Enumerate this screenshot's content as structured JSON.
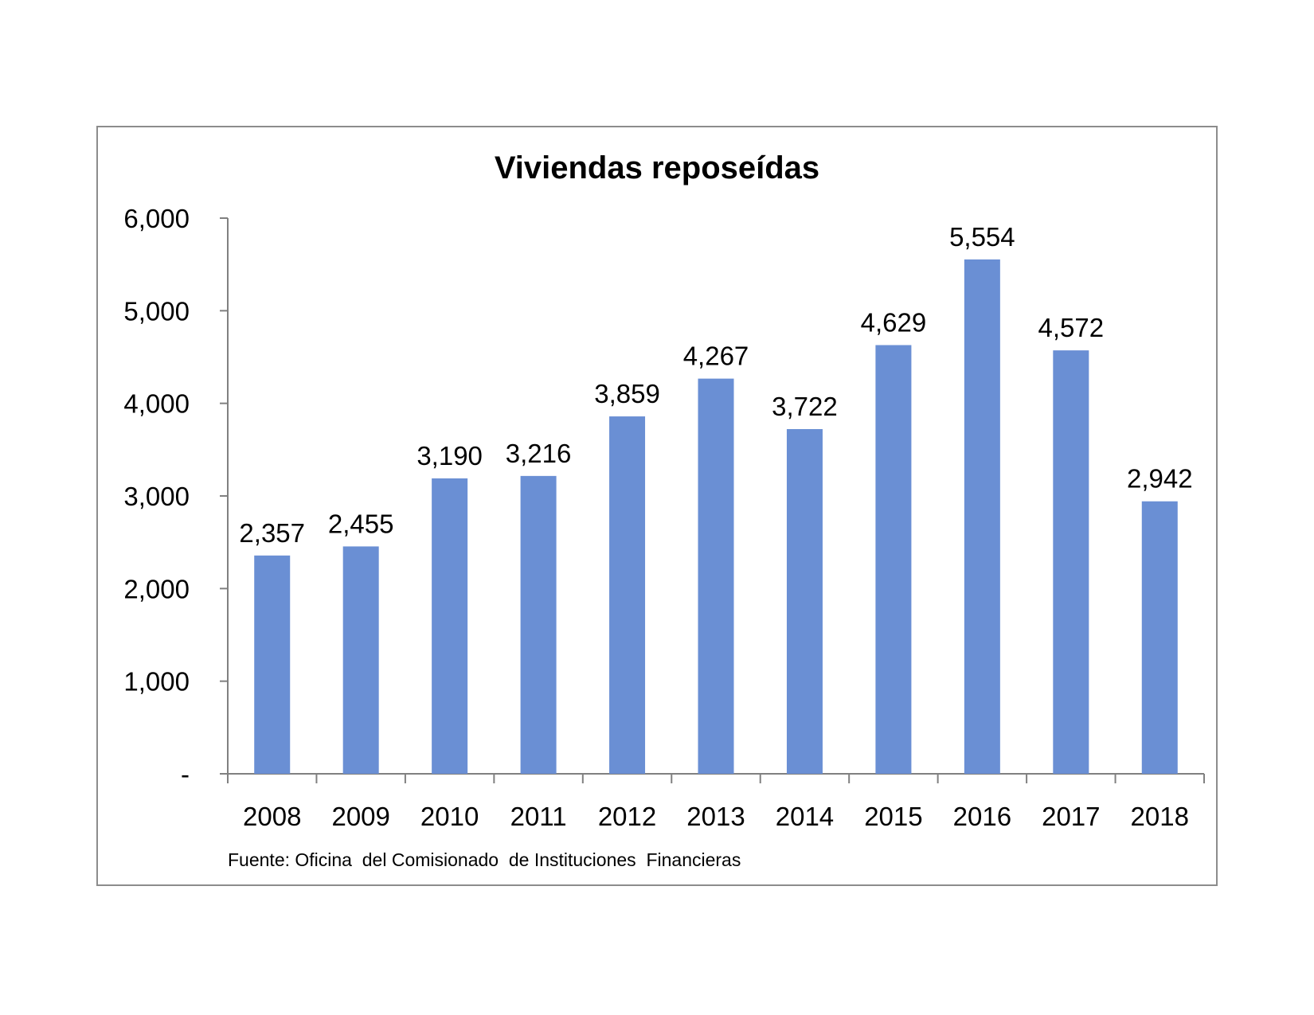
{
  "chart_data": {
    "type": "bar",
    "title": "Viviendas reposeídas",
    "categories": [
      "2008",
      "2009",
      "2010",
      "2011",
      "2012",
      "2013",
      "2014",
      "2015",
      "2016",
      "2017",
      "2018"
    ],
    "values": [
      2357,
      2455,
      3190,
      3216,
      3859,
      4267,
      3722,
      4629,
      5554,
      4572,
      2942
    ],
    "data_labels": [
      "2,357",
      "2,455",
      "3,190",
      "3,216",
      "3,859",
      "4,267",
      "3,722",
      "4,629",
      "5,554",
      "4,572",
      "2,942"
    ],
    "xlabel": "",
    "ylabel": "",
    "ylim": [
      0,
      6000
    ],
    "yticks": [
      0,
      1000,
      2000,
      3000,
      4000,
      5000,
      6000
    ],
    "ytick_labels": [
      "-",
      "1,000",
      "2,000",
      "3,000",
      "4,000",
      "5,000",
      "6,000"
    ],
    "grid": false,
    "legend": "none",
    "bar_color": "#6a8fd4",
    "source": "Fuente: Oficina  del Comisionado  de Instituciones  Financieras"
  }
}
